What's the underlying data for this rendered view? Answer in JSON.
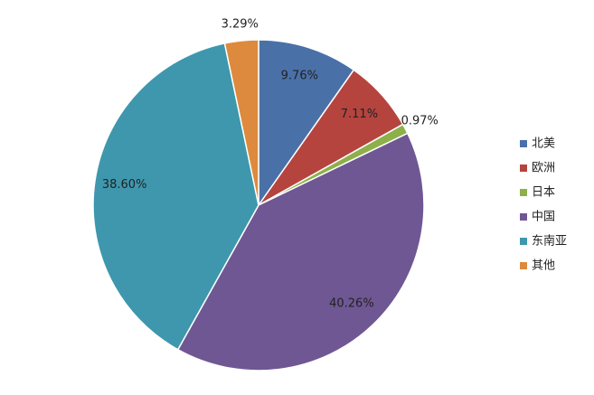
{
  "chart_data": {
    "type": "pie",
    "categories": [
      "北美",
      "欧洲",
      "日本",
      "中国",
      "东南亚",
      "其他"
    ],
    "values": [
      9.76,
      7.11,
      0.97,
      40.26,
      38.6,
      3.29
    ],
    "value_labels": [
      "9.76%",
      "7.11%",
      "0.97%",
      "40.26%",
      "38.60%",
      "3.29%"
    ],
    "colors": [
      "#4a70a8",
      "#b5443f",
      "#8db04a",
      "#6f5793",
      "#3e97ad",
      "#dd8a3e"
    ],
    "legend": "right"
  }
}
